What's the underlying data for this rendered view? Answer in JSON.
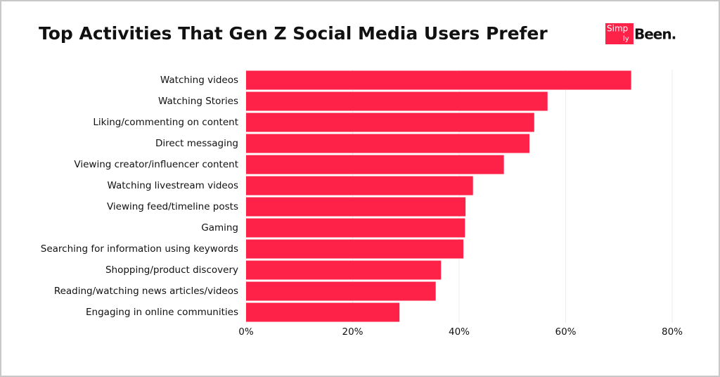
{
  "chart_data": {
    "type": "barh",
    "title": "Top Activities That Gen Z Social Media Users Prefer",
    "categories": [
      "Watching videos",
      "Watching Stories",
      "Liking/commenting on content",
      "Direct messaging",
      "Viewing creator/influencer content",
      "Watching livestream videos",
      "Viewing feed/timeline posts",
      "Gaming",
      "Searching for information using keywords",
      "Shopping/product discovery",
      "Reading/watching news articles/videos",
      "Engaging in online communities"
    ],
    "values": [
      72.3,
      56.6,
      54.1,
      53.2,
      48.4,
      42.6,
      41.2,
      41.1,
      40.8,
      36.6,
      35.6,
      28.8
    ],
    "color": "#fe2249",
    "xlim": [
      0,
      80
    ],
    "xticks": [
      {
        "value": 0,
        "label": "0%"
      },
      {
        "value": 20,
        "label": "20%"
      },
      {
        "value": 40,
        "label": "40%"
      },
      {
        "value": 60,
        "label": "60%"
      },
      {
        "value": 80,
        "label": "80%"
      }
    ],
    "grid": true
  },
  "logo": {
    "box": "Simp",
    "small": "ly",
    "text": "Been."
  }
}
